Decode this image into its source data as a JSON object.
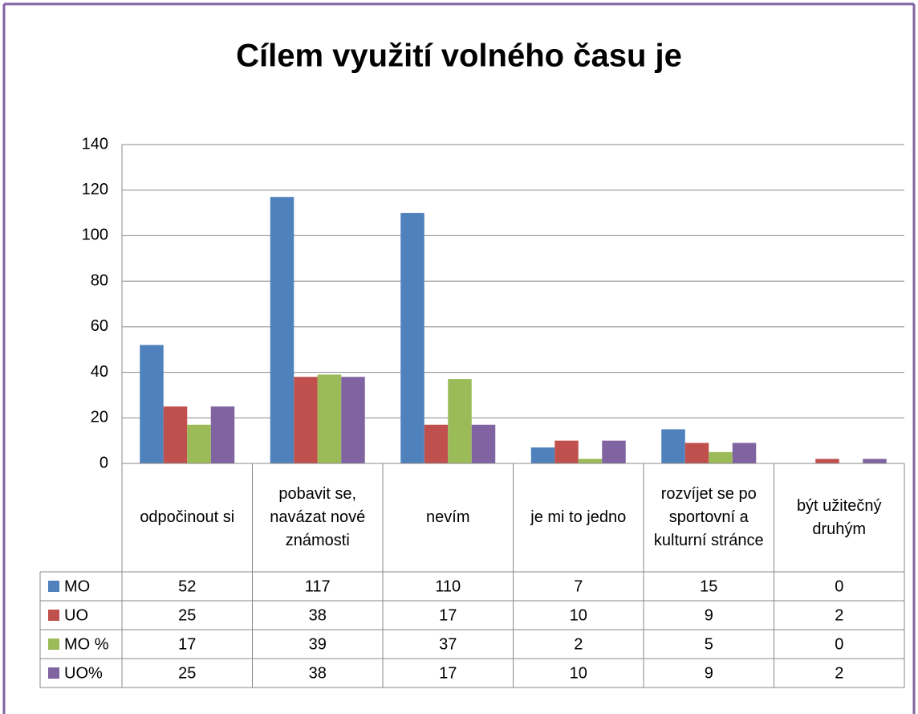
{
  "chart_data": {
    "type": "bar",
    "title": "Cílem využití volného času je",
    "categories": [
      "odpočinout si",
      "pobavit se, navázat nové známosti",
      "nevím",
      "je mi to jedno",
      "rozvíjet se po sportovní a kulturní stránce",
      "být užitečný druhým"
    ],
    "series": [
      {
        "name": "MO",
        "color": "#4f81bd",
        "values": [
          52,
          117,
          110,
          7,
          15,
          0
        ]
      },
      {
        "name": "UO",
        "color": "#c0504d",
        "values": [
          25,
          38,
          17,
          10,
          9,
          2
        ]
      },
      {
        "name": "MO %",
        "color": "#9bbb59",
        "values": [
          17,
          39,
          37,
          2,
          5,
          0
        ]
      },
      {
        "name": "UO%",
        "color": "#8064a2",
        "values": [
          25,
          38,
          17,
          10,
          9,
          2
        ]
      }
    ],
    "ylim": [
      0,
      140
    ],
    "yticks": [
      0,
      20,
      40,
      60,
      80,
      100,
      120,
      140
    ],
    "grid": true,
    "legend": "table"
  }
}
